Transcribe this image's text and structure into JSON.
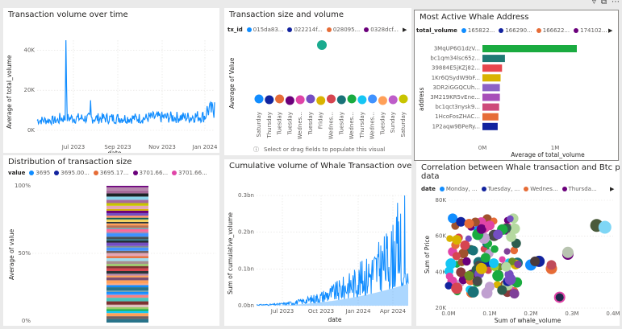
{
  "panels": {
    "volume_over_time": {
      "title": "Transaction volume over time",
      "ylabel": "Average of total_volume",
      "xlabel": "date",
      "yticks": [
        "40K",
        "20K",
        "0K"
      ],
      "xticks": [
        "Jul 2023",
        "Sep 2023",
        "Nov 2023",
        "Jan 2024"
      ]
    },
    "size_volume": {
      "title": "Transaction size and volume",
      "legend_key": "tx_id",
      "legend": [
        {
          "label": "015da83...",
          "color": "#118dff"
        },
        {
          "label": "022214f...",
          "color": "#12239e"
        },
        {
          "label": "028095...",
          "color": "#e66c37"
        },
        {
          "label": "0328dcf...",
          "color": "#6b007b"
        }
      ],
      "ylabel": "Average of Value",
      "days": [
        "Saturday",
        "Thursday",
        "Tuesday",
        "Tuesday",
        "Wednes...",
        "Tuesday",
        "Friday",
        "Wednes...",
        "Tuesday",
        "Wednes...",
        "Thursday",
        "Wednes...",
        "Tuesday",
        "Sunday",
        "Saturday"
      ],
      "hint": "Select or drag fields to populate this visual"
    },
    "whale_address": {
      "title": "Most Active Whale Address",
      "legend_key": "total_volume",
      "legend": [
        {
          "label": "165822...",
          "color": "#118dff"
        },
        {
          "label": "166290...",
          "color": "#12239e"
        },
        {
          "label": "166622...",
          "color": "#e66c37"
        },
        {
          "label": "174102...",
          "color": "#6b007b"
        }
      ],
      "ylabel": "address",
      "xlabel": "Average of total_volume",
      "xticks": [
        "0M",
        "1M"
      ],
      "addresses": [
        "3MqUP6G1dzV...",
        "bc1qm34lsc65z...",
        "39884E5jKZj82...",
        "1Kr6QSydW9bF...",
        "3DR2iGGQCUh...",
        "3M219KR5vEne...",
        "bc1qct3nysk9...",
        "1HcoFosZHAC...",
        "1P2aqw9BPeRy..."
      ]
    },
    "distribution": {
      "title": "Distribution of transaction size",
      "legend_key": "value",
      "legend": [
        {
          "label": "3695",
          "color": "#118dff"
        },
        {
          "label": "3695.00...",
          "color": "#12239e"
        },
        {
          "label": "3695.17...",
          "color": "#e66c37"
        },
        {
          "label": "3701.66...",
          "color": "#6b007b"
        },
        {
          "label": "3701.66...",
          "color": "#e044a7"
        }
      ],
      "ylabel": "Average of value",
      "yticks": [
        "100%",
        "50%",
        "0%"
      ]
    },
    "cumulative": {
      "title": "Cumulative volume of Whale Transaction over time",
      "ylabel": "Sum of cumulative_volume",
      "xlabel": "date",
      "yticks": [
        "0.3bn",
        "0.2bn",
        "0.1bn",
        "0.0bn"
      ],
      "xticks": [
        "Jul 2023",
        "Oct 2023",
        "Jan 2024",
        "Apr 2024"
      ]
    },
    "correlation": {
      "title": "Correlation between Whale transaction and Btc price",
      "title2": "data",
      "legend_key": "date",
      "legend": [
        {
          "label": "Monday, ...",
          "color": "#118dff"
        },
        {
          "label": "Tuesday, ...",
          "color": "#12239e"
        },
        {
          "label": "Wednes...",
          "color": "#e66c37"
        },
        {
          "label": "Thursda...",
          "color": "#6b007b"
        }
      ],
      "ylabel": "Sum of Price",
      "xlabel": "Sum of whale_volume",
      "yticks": [
        "80K",
        "60K",
        "40K",
        "20K"
      ],
      "xticks": [
        "0.0M",
        "0.1M",
        "0.2M",
        "0.3M",
        "0.4M"
      ]
    }
  },
  "chart_data": [
    {
      "type": "line",
      "title": "Transaction volume over time",
      "xlabel": "date",
      "ylabel": "Average of total_volume",
      "ylim": [
        0,
        45000
      ],
      "x": [
        "2023-05",
        "2023-06",
        "2023-07",
        "2023-08",
        "2023-09",
        "2023-10",
        "2023-11",
        "2023-12",
        "2024-01"
      ],
      "series": [
        {
          "values": [
            5000,
            45000,
            6000,
            7000,
            6000,
            8000,
            6500,
            7000,
            13000
          ]
        }
      ]
    },
    {
      "type": "scatter",
      "title": "Transaction size and volume",
      "ylabel": "Average of Value",
      "categories": [
        "Saturday",
        "Thursday",
        "Tuesday",
        "Tuesday",
        "Wednes...",
        "Tuesday",
        "Friday",
        "Wednes...",
        "Tuesday",
        "Wednes...",
        "Thursday",
        "Wednes...",
        "Tuesday",
        "Sunday",
        "Saturday"
      ]
    },
    {
      "type": "bar",
      "title": "Most Active Whale Address",
      "xlabel": "Average of total_volume",
      "ylabel": "address",
      "categories": [
        "3MqUP6G1dzV...",
        "bc1qm34lsc65z...",
        "39884E5jKZj82...",
        "1Kr6QSydW9bF...",
        "3DR2iGGQCUh...",
        "3M219KR5vEne...",
        "bc1qct3nysk9...",
        "1HcoFosZHAC...",
        "1P2aqw9BPeRy..."
      ],
      "values": [
        1300000,
        310000,
        270000,
        250000,
        240000,
        240000,
        230000,
        220000,
        210000
      ],
      "colors": [
        "#1aab40",
        "#1f7a74",
        "#e8464d",
        "#d9b300",
        "#8c62c6",
        "#a74eb9",
        "#ce4a7a",
        "#e66c37",
        "#12239e"
      ],
      "xlim": [
        0,
        1500000
      ]
    },
    {
      "type": "bar",
      "title": "Distribution of transaction size",
      "ylabel": "Average of value",
      "ylim": [
        0,
        100
      ]
    },
    {
      "type": "area",
      "title": "Cumulative volume of Whale Transaction over time",
      "xlabel": "date",
      "ylabel": "Sum of cumulative_volume",
      "ylim": [
        0,
        0.3
      ],
      "x": [
        "2023-05",
        "2023-07",
        "2023-09",
        "2023-10",
        "2023-12",
        "2024-01",
        "2024-02",
        "2024-03",
        "2024-04",
        "2024-05"
      ],
      "series": [
        {
          "values": [
            0.005,
            0.01,
            0.02,
            0.04,
            0.08,
            0.12,
            0.18,
            0.22,
            0.3,
            0.06
          ]
        }
      ]
    },
    {
      "type": "scatter",
      "title": "Correlation between Whale transaction and Btc price data",
      "xlabel": "Sum of whale_volume",
      "ylabel": "Sum of Price",
      "xlim": [
        0,
        0.4
      ],
      "ylim": [
        20000,
        80000
      ],
      "points": [
        [
          0.01,
          70000
        ],
        [
          0.03,
          68000
        ],
        [
          0.05,
          67000
        ],
        [
          0.08,
          64000
        ],
        [
          0.1,
          66000
        ],
        [
          0.12,
          61000
        ],
        [
          0.02,
          58000
        ],
        [
          0.04,
          55000
        ],
        [
          0.06,
          52000
        ],
        [
          0.09,
          48000
        ],
        [
          0.11,
          45000
        ],
        [
          0.14,
          43000
        ],
        [
          0.03,
          40000
        ],
        [
          0.05,
          38000
        ],
        [
          0.07,
          35000
        ],
        [
          0.1,
          32000
        ],
        [
          0.13,
          30000
        ],
        [
          0.16,
          28000
        ],
        [
          0.36,
          66000
        ],
        [
          0.38,
          65000
        ],
        [
          0.2,
          44000
        ],
        [
          0.22,
          46000
        ],
        [
          0.25,
          42000
        ],
        [
          0.29,
          50000
        ],
        [
          0.27,
          26000
        ],
        [
          0.15,
          36000
        ],
        [
          0.08,
          42000
        ],
        [
          0.02,
          31000
        ],
        [
          0.06,
          29000
        ],
        [
          0.12,
          38000
        ]
      ]
    }
  ]
}
